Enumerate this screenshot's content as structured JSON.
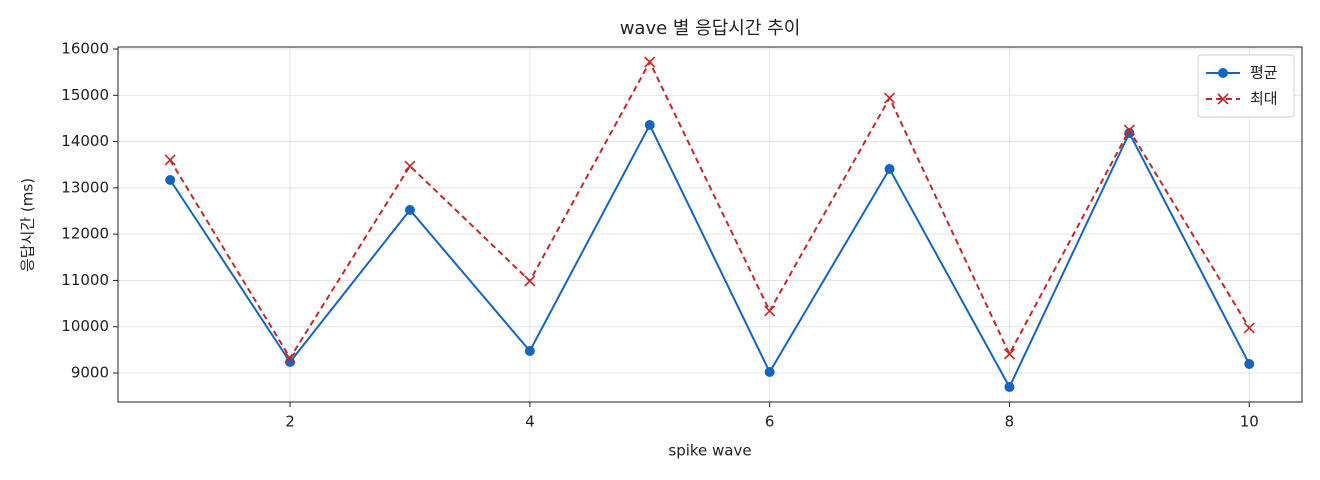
{
  "chart_data": {
    "type": "line",
    "title": "wave 별 응답시간 추이",
    "x_label": "spike wave",
    "y_label": "응답시간 (ms)",
    "x": [
      1,
      2,
      3,
      4,
      5,
      6,
      7,
      8,
      9,
      10
    ],
    "series": [
      {
        "name": "평균",
        "color": "#1565c0",
        "marker": "o",
        "linestyle": "solid",
        "values": [
          13170,
          9238,
          12522,
          9476,
          14358,
          9022,
          13408,
          8698,
          14185,
          9195
        ]
      },
      {
        "name": "최대",
        "color": "#c62828",
        "marker": "x",
        "linestyle": "dashed",
        "values": [
          13602,
          9325,
          13472,
          10988,
          15719,
          10340,
          14941,
          9411,
          14250,
          9973
        ]
      }
    ],
    "xlim": [
      0.565,
      10.44
    ],
    "xticks": [
      2,
      4,
      6,
      8,
      10
    ],
    "ylim": [
      8374,
      16043
    ],
    "yticks": [
      9000,
      10000,
      11000,
      12000,
      13000,
      14000,
      15000,
      16000
    ],
    "grid": true,
    "legend": "upper right"
  }
}
